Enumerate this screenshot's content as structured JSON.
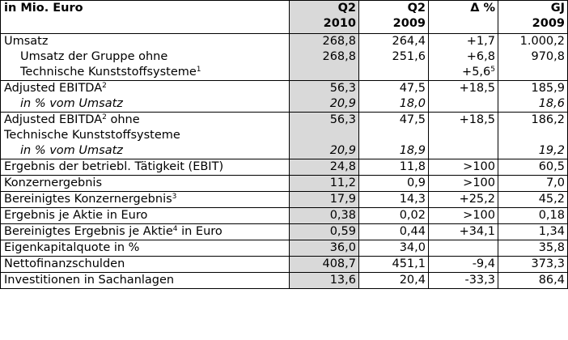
{
  "header": {
    "label": "in Mio. Euro",
    "cols": [
      {
        "l1": "Q2",
        "l2": "2010"
      },
      {
        "l1": "Q2",
        "l2": "2009"
      },
      {
        "l1": "Δ %",
        "l2": ""
      },
      {
        "l1": "GJ",
        "l2": "2009"
      }
    ]
  },
  "rows": [
    {
      "lines": [
        {
          "text": "Umsatz",
          "sup": "",
          "indent": false,
          "italic": false
        },
        {
          "text": "Umsatz der Gruppe ohne",
          "sup": "",
          "indent": true,
          "italic": false
        },
        {
          "text": "Technische Kunststoffsysteme",
          "sup": "1",
          "indent": true,
          "italic": false
        }
      ],
      "vals": [
        [
          "268,8",
          "268,8",
          ""
        ],
        [
          "264,4",
          "251,6",
          ""
        ],
        [
          "+1,7",
          "+6,8",
          "+5,6"
        ],
        [
          "1.000,2",
          "970,8",
          ""
        ]
      ],
      "val_sup": [
        [
          "",
          "",
          ""
        ],
        [
          "",
          "",
          ""
        ],
        [
          "",
          "",
          "5"
        ],
        [
          "",
          "",
          ""
        ]
      ]
    },
    {
      "lines": [
        {
          "text": "Adjusted EBITDA",
          "sup": "2",
          "indent": false,
          "italic": false
        },
        {
          "text": "in % vom Umsatz",
          "sup": "",
          "indent": true,
          "italic": true
        }
      ],
      "vals": [
        [
          "56,3",
          "20,9"
        ],
        [
          "47,5",
          "18,0"
        ],
        [
          "+18,5",
          ""
        ],
        [
          "185,9",
          "18,6"
        ]
      ],
      "italic_second": true
    },
    {
      "lines": [
        {
          "text": "Adjusted EBITDA",
          "sup": "2",
          "after": " ohne",
          "indent": false,
          "italic": false
        },
        {
          "text": "Technische Kunststoffsysteme",
          "sup": "",
          "indent": false,
          "italic": false
        },
        {
          "text": "in % vom Umsatz",
          "sup": "",
          "indent": true,
          "italic": true
        }
      ],
      "vals": [
        [
          "56,3",
          "",
          "20,9"
        ],
        [
          "47,5",
          "",
          "18,9"
        ],
        [
          "+18,5",
          "",
          ""
        ],
        [
          "186,2",
          "",
          "19,2"
        ]
      ],
      "italic_third": true
    },
    {
      "label": "Ergebnis der betriebl. Tätigkeit (EBIT)",
      "sup": "",
      "after": "",
      "vals": [
        "24,8",
        "11,8",
        ">100",
        "60,5"
      ]
    },
    {
      "label": "Konzernergebnis",
      "sup": "",
      "after": "",
      "vals": [
        "11,2",
        "0,9",
        ">100",
        "7,0"
      ]
    },
    {
      "label": "Bereinigtes Konzernergebnis",
      "sup": "3",
      "after": "",
      "vals": [
        "17,9",
        "14,3",
        "+25,2",
        "45,2"
      ]
    },
    {
      "label": "Ergebnis je Aktie in Euro",
      "sup": "",
      "after": "",
      "vals": [
        "0,38",
        "0,02",
        ">100",
        "0,18"
      ]
    },
    {
      "label": "Bereinigtes Ergebnis je Aktie",
      "sup": "4",
      "after": " in Euro",
      "vals": [
        "0,59",
        "0,44",
        "+34,1",
        "1,34"
      ]
    },
    {
      "label": "Eigenkapitalquote in %",
      "sup": "",
      "after": "",
      "vals": [
        "36,0",
        "34,0",
        "",
        "35,8"
      ]
    },
    {
      "label": "Nettofinanzschulden",
      "sup": "",
      "after": "",
      "vals": [
        "408,7",
        "451,1",
        "-9,4",
        "373,3"
      ]
    },
    {
      "label": "Investitionen in Sachanlagen",
      "sup": "",
      "after": "",
      "vals": [
        "13,6",
        "20,4",
        "-33,3",
        "86,4"
      ]
    }
  ],
  "colors": {
    "shade": "#d9d9d9",
    "border": "#000000"
  }
}
